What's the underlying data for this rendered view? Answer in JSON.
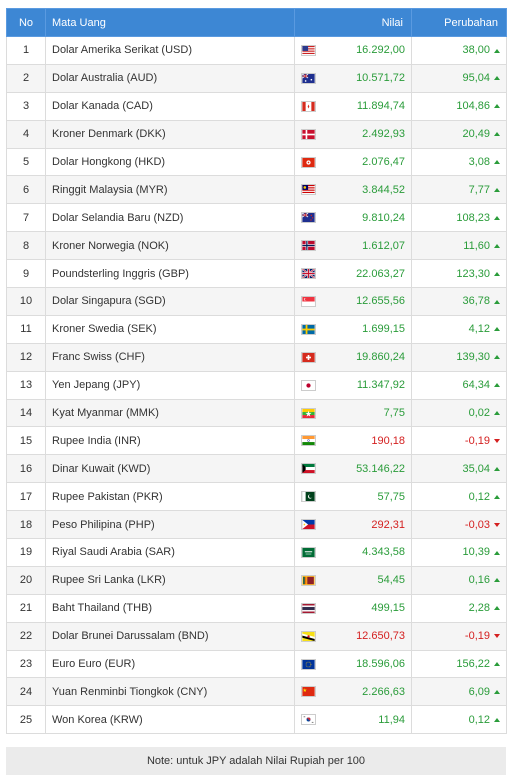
{
  "headers": {
    "no": "No",
    "name": "Mata Uang",
    "value": "Nilai",
    "change": "Perubahan"
  },
  "rows": [
    {
      "no": "1",
      "name": "Dolar Amerika Serikat (USD)",
      "flag": "us-flag",
      "value": "16.292,00",
      "change": "38,00",
      "trend": "up"
    },
    {
      "no": "2",
      "name": "Dolar Australia (AUD)",
      "flag": "au-flag",
      "value": "10.571,72",
      "change": "95,04",
      "trend": "up"
    },
    {
      "no": "3",
      "name": "Dolar Kanada (CAD)",
      "flag": "ca-flag",
      "value": "11.894,74",
      "change": "104,86",
      "trend": "up"
    },
    {
      "no": "4",
      "name": "Kroner Denmark (DKK)",
      "flag": "dk-flag",
      "value": "2.492,93",
      "change": "20,49",
      "trend": "up"
    },
    {
      "no": "5",
      "name": "Dolar Hongkong (HKD)",
      "flag": "hk-flag",
      "value": "2.076,47",
      "change": "3,08",
      "trend": "up"
    },
    {
      "no": "6",
      "name": "Ringgit Malaysia (MYR)",
      "flag": "my-flag",
      "value": "3.844,52",
      "change": "7,77",
      "trend": "up"
    },
    {
      "no": "7",
      "name": "Dolar Selandia Baru (NZD)",
      "flag": "nz-flag",
      "value": "9.810,24",
      "change": "108,23",
      "trend": "up"
    },
    {
      "no": "8",
      "name": "Kroner Norwegia (NOK)",
      "flag": "no-flag",
      "value": "1.612,07",
      "change": "11,60",
      "trend": "up"
    },
    {
      "no": "9",
      "name": "Poundsterling Inggris (GBP)",
      "flag": "gb-flag",
      "value": "22.063,27",
      "change": "123,30",
      "trend": "up"
    },
    {
      "no": "10",
      "name": "Dolar Singapura (SGD)",
      "flag": "sg-flag",
      "value": "12.655,56",
      "change": "36,78",
      "trend": "up"
    },
    {
      "no": "11",
      "name": "Kroner Swedia (SEK)",
      "flag": "se-flag",
      "value": "1.699,15",
      "change": "4,12",
      "trend": "up"
    },
    {
      "no": "12",
      "name": "Franc Swiss (CHF)",
      "flag": "ch-flag",
      "value": "19.860,24",
      "change": "139,30",
      "trend": "up"
    },
    {
      "no": "13",
      "name": "Yen Jepang (JPY)",
      "flag": "jp-flag",
      "value": "11.347,92",
      "change": "64,34",
      "trend": "up"
    },
    {
      "no": "14",
      "name": "Kyat Myanmar (MMK)",
      "flag": "mm-flag",
      "value": "7,75",
      "change": "0,02",
      "trend": "up"
    },
    {
      "no": "15",
      "name": "Rupee India (INR)",
      "flag": "in-flag",
      "value": "190,18",
      "change": "-0,19",
      "trend": "down"
    },
    {
      "no": "16",
      "name": "Dinar Kuwait (KWD)",
      "flag": "kw-flag",
      "value": "53.146,22",
      "change": "35,04",
      "trend": "up"
    },
    {
      "no": "17",
      "name": "Rupee Pakistan (PKR)",
      "flag": "pk-flag",
      "value": "57,75",
      "change": "0,12",
      "trend": "up"
    },
    {
      "no": "18",
      "name": "Peso Philipina (PHP)",
      "flag": "ph-flag",
      "value": "292,31",
      "change": "-0,03",
      "trend": "down"
    },
    {
      "no": "19",
      "name": "Riyal Saudi Arabia (SAR)",
      "flag": "sa-flag",
      "value": "4.343,58",
      "change": "10,39",
      "trend": "up"
    },
    {
      "no": "20",
      "name": "Rupee Sri Lanka (LKR)",
      "flag": "lk-flag",
      "value": "54,45",
      "change": "0,16",
      "trend": "up"
    },
    {
      "no": "21",
      "name": "Baht Thailand (THB)",
      "flag": "th-flag",
      "value": "499,15",
      "change": "2,28",
      "trend": "up"
    },
    {
      "no": "22",
      "name": "Dolar Brunei Darussalam (BND)",
      "flag": "bn-flag",
      "value": "12.650,73",
      "change": "-0,19",
      "trend": "down"
    },
    {
      "no": "23",
      "name": "Euro Euro (EUR)",
      "flag": "eu-flag",
      "value": "18.596,06",
      "change": "156,22",
      "trend": "up"
    },
    {
      "no": "24",
      "name": "Yuan Renminbi Tiongkok (CNY)",
      "flag": "cn-flag",
      "value": "2.266,63",
      "change": "6,09",
      "trend": "up"
    },
    {
      "no": "25",
      "name": "Won Korea (KRW)",
      "flag": "kr-flag",
      "value": "11,94",
      "change": "0,12",
      "trend": "up"
    }
  ],
  "colors": {
    "header": "#3d87d4",
    "up": "#2a9c3a",
    "down": "#d42020"
  },
  "note": "Note: untuk JPY adalah Nilai Rupiah per 100"
}
